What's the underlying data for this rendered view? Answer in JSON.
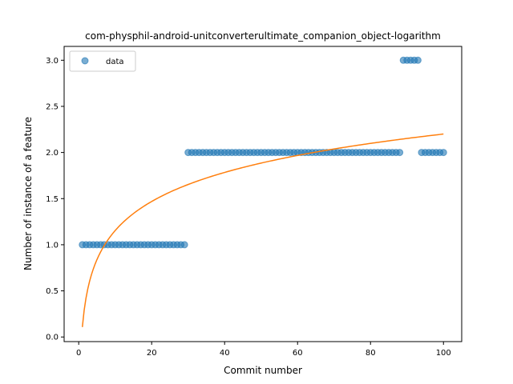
{
  "chart_data": {
    "type": "scatter",
    "title": "com-physphil-android-unitconverterultimate_companion_object-logarithm",
    "xlabel": "Commit number",
    "ylabel": "Number of instance of a feature",
    "xlim": [
      -4,
      105
    ],
    "ylim": [
      -0.05,
      3.15
    ],
    "xticks": [
      0,
      20,
      40,
      60,
      80,
      100
    ],
    "yticks": [
      0.0,
      0.5,
      1.0,
      1.5,
      2.0,
      2.5,
      3.0
    ],
    "xtick_labels": [
      "0",
      "20",
      "40",
      "60",
      "80",
      "100"
    ],
    "ytick_labels": [
      "0.0",
      "0.5",
      "1.0",
      "1.5",
      "2.0",
      "2.5",
      "3.0"
    ],
    "legend": {
      "position": "top-left",
      "entries": [
        "data"
      ]
    },
    "grid": false,
    "series": [
      {
        "name": "data",
        "kind": "scatter",
        "color": "#1f77b4",
        "segments": [
          {
            "x_from": 1,
            "x_to": 29,
            "y": 1
          },
          {
            "x_from": 30,
            "x_to": 88,
            "y": 2
          },
          {
            "x_from": 89,
            "x_to": 93,
            "y": 3
          },
          {
            "x_from": 94,
            "x_to": 100,
            "y": 2
          }
        ]
      },
      {
        "kind": "line",
        "color": "#ff7f0e",
        "fit": {
          "model": "a*ln(x)+b",
          "a": 0.4543,
          "b": 0.1079,
          "x_from": 1,
          "x_to": 100
        }
      }
    ]
  }
}
